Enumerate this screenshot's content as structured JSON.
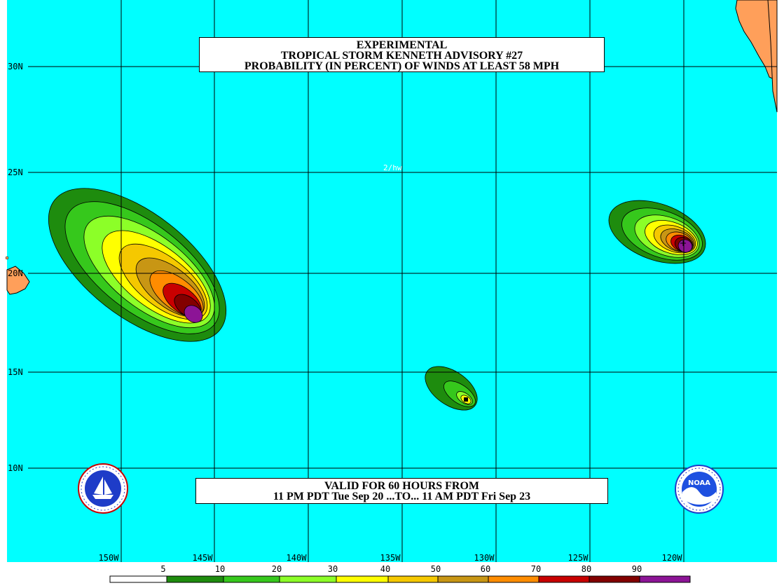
{
  "header": {
    "line1": "EXPERIMENTAL",
    "line2": "TROPICAL STORM KENNETH ADVISORY #27",
    "line3": "PROBABILITY (IN PERCENT) OF WINDS AT LEAST 58 MPH"
  },
  "valid_box": {
    "line1": "VALID FOR 60 HOURS FROM",
    "line2": "11 PM PDT Tue Sep 20 ...TO... 11 AM PDT Fri Sep 23"
  },
  "map_tag": "2/hw",
  "lat_labels": [
    "30N",
    "25N",
    "20N",
    "15N",
    "10N"
  ],
  "lon_labels": [
    "150W",
    "145W",
    "140W",
    "135W",
    "130W",
    "125W",
    "120W"
  ],
  "legend": {
    "labels": [
      "5",
      "10",
      "20",
      "30",
      "40",
      "50",
      "60",
      "70",
      "80",
      "90"
    ],
    "colors": [
      "#ffffff",
      "#1e8c0e",
      "#36c81c",
      "#8cff28",
      "#ffff00",
      "#f5c800",
      "#c89614",
      "#ff8c00",
      "#c80000",
      "#820000",
      "#8c1496"
    ]
  },
  "colors": {
    "ocean": "#00ffff",
    "land": "#ff9f5a",
    "grid": "#000000"
  },
  "logos": {
    "left": "nws-logo",
    "right": "noaa-logo",
    "right_text": "NOAA"
  }
}
